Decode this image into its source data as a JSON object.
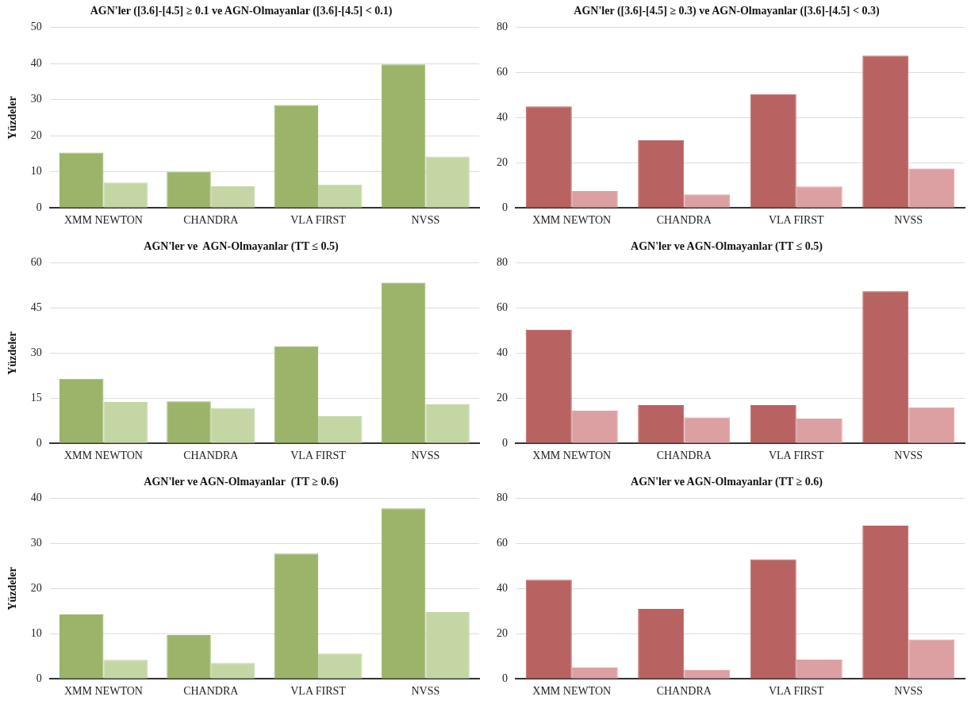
{
  "chart_data": [
    {
      "type": "bar",
      "title": "AGN'ler ([3.6]-[4.5] ≥ 0.1 ve AGN-Olmayanlar ([3.6]-[4.5] < 0.1)",
      "ylabel": "Yüzdeler",
      "categories": [
        "XMM NEWTON",
        "CHANDRA",
        "VLA FIRST",
        "NVSS"
      ],
      "series": [
        {
          "color": "#9bb46a",
          "values": [
            15.3,
            10,
            28.5,
            39.8
          ]
        },
        {
          "color": "#c5d6a5",
          "values": [
            7,
            6,
            6.5,
            14.2
          ]
        }
      ],
      "ylim": [
        0,
        50
      ],
      "yticks": [
        0,
        10,
        20,
        30,
        40,
        50
      ],
      "grid": "y"
    },
    {
      "type": "bar",
      "title": "AGN'ler ([3.6]-[4.5] ≥ 0.3) ve AGN-Olmayanlar ([3.6]-[4.5] < 0.3)",
      "categories": [
        "XMM NEWTON",
        "CHANDRA",
        "VLA FIRST",
        "NVSS"
      ],
      "series": [
        {
          "color": "#b86262",
          "values": [
            45,
            30,
            50.5,
            67.5
          ]
        },
        {
          "color": "#dca0a2",
          "values": [
            7.5,
            6,
            9.5,
            17.5
          ]
        }
      ],
      "ylim": [
        0,
        80
      ],
      "yticks": [
        0,
        20,
        40,
        60,
        80
      ],
      "grid": "y"
    },
    {
      "type": "bar",
      "title": "AGN'ler ve  AGN-Olmayanlar (TT ≤ 0.5)",
      "ylabel": "Yüzdeler",
      "categories": [
        "XMM NEWTON",
        "CHANDRA",
        "VLA FIRST",
        "NVSS"
      ],
      "series": [
        {
          "color": "#9bb46a",
          "values": [
            21.5,
            14,
            32.3,
            53.5
          ]
        },
        {
          "color": "#c5d6a5",
          "values": [
            13.8,
            11.7,
            9,
            13
          ]
        }
      ],
      "ylim": [
        0,
        60
      ],
      "yticks": [
        0,
        15,
        30,
        45,
        60
      ],
      "grid": "y"
    },
    {
      "type": "bar",
      "title": "AGN'ler ve AGN-Olmayanlar (TT ≤ 0.5)",
      "categories": [
        "XMM NEWTON",
        "CHANDRA",
        "VLA FIRST",
        "NVSS"
      ],
      "series": [
        {
          "color": "#b86262",
          "values": [
            50.5,
            17,
            17,
            67.5
          ]
        },
        {
          "color": "#dca0a2",
          "values": [
            14.5,
            11.5,
            11,
            16
          ]
        }
      ],
      "ylim": [
        0,
        80
      ],
      "yticks": [
        0,
        20,
        40,
        60,
        80
      ],
      "grid": "y"
    },
    {
      "type": "bar",
      "title": "AGN'ler ve AGN-Olmayanlar  (TT ≥ 0.6)",
      "ylabel": "Yüzdeler",
      "categories": [
        "XMM NEWTON",
        "CHANDRA",
        "VLA FIRST",
        "NVSS"
      ],
      "series": [
        {
          "color": "#9bb46a",
          "values": [
            14.3,
            9.7,
            27.8,
            37.8
          ]
        },
        {
          "color": "#c5d6a5",
          "values": [
            4.2,
            3.5,
            5.6,
            14.8
          ]
        }
      ],
      "ylim": [
        0,
        40
      ],
      "yticks": [
        0,
        10,
        20,
        30,
        40
      ],
      "grid": "y"
    },
    {
      "type": "bar",
      "title": "AGN'ler ve AGN-Olmayanlar (TT ≥ 0.6)",
      "categories": [
        "XMM NEWTON",
        "CHANDRA",
        "VLA FIRST",
        "NVSS"
      ],
      "series": [
        {
          "color": "#b86262",
          "values": [
            44,
            31,
            53,
            68
          ]
        },
        {
          "color": "#dca0a2",
          "values": [
            5,
            4,
            8.5,
            17.5
          ]
        }
      ],
      "ylim": [
        0,
        80
      ],
      "yticks": [
        0,
        20,
        40,
        60,
        80
      ],
      "grid": "y"
    }
  ]
}
